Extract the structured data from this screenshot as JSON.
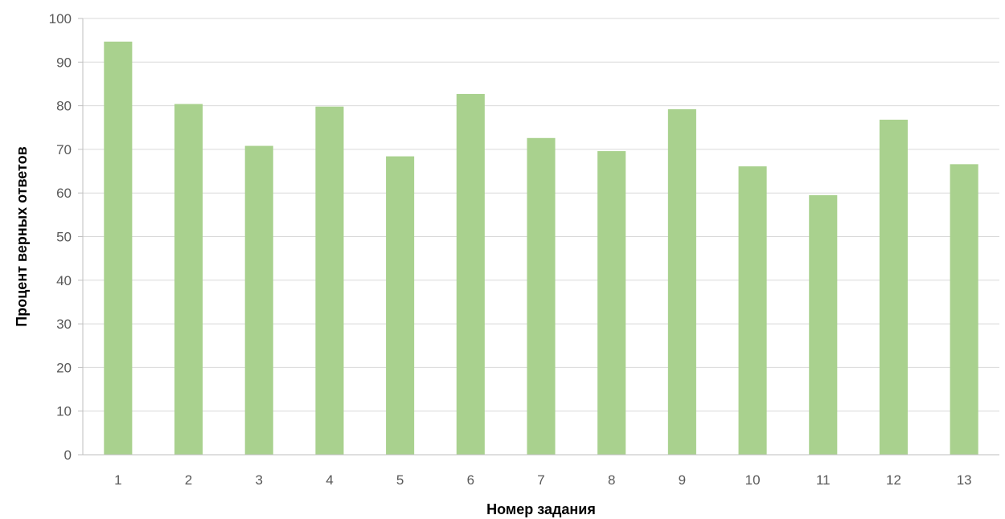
{
  "chart_data": {
    "type": "bar",
    "title": "",
    "xlabel": "Номер задания",
    "ylabel": "Процент верных ответов",
    "categories": [
      "1",
      "2",
      "3",
      "4",
      "5",
      "6",
      "7",
      "8",
      "9",
      "10",
      "11",
      "12",
      "13"
    ],
    "values": [
      94.7,
      80.4,
      70.8,
      79.8,
      68.4,
      82.7,
      72.6,
      69.6,
      79.2,
      66.1,
      59.5,
      76.8,
      66.6
    ],
    "ylim": [
      0,
      100
    ],
    "yticks": [
      "0",
      "10",
      "20",
      "30",
      "40",
      "50",
      "60",
      "70",
      "80",
      "90",
      "100"
    ],
    "grid": true,
    "legend": "none",
    "colors": {
      "bar": "#a9d18e",
      "grid": "#d9d9d9",
      "axis": "#bfbfbf"
    }
  }
}
